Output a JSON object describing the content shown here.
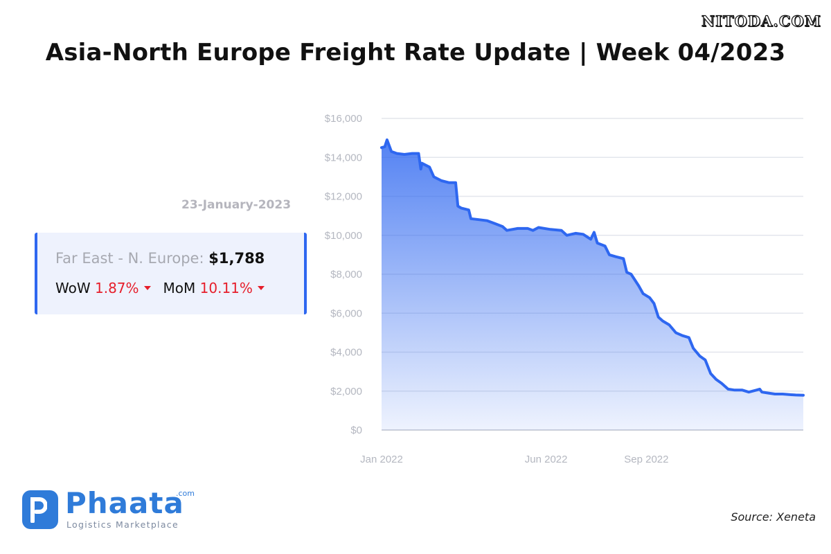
{
  "header": {
    "watermark": "NITODA.COM",
    "title": "Asia-North Europe Freight Rate Update | Week 04/2023"
  },
  "card": {
    "date": "23-January-2023",
    "route_label": "Far East - N. Europe:",
    "price": "$1,788",
    "wow_label": "WoW",
    "wow_value": "1.87%",
    "mom_label": "MoM",
    "mom_value": "10.11%"
  },
  "footer": {
    "logo_name": "Phaata",
    "logo_com": ".com",
    "logo_tagline": "Logistics Marketplace",
    "source": "Source: Xeneta"
  },
  "colors": {
    "line": "#2e67f0",
    "accent_red": "#e61e2b",
    "brand": "#2f7bd9"
  },
  "chart_data": {
    "type": "area",
    "title": "",
    "xlabel": "",
    "ylabel": "",
    "ylim": [
      0,
      16000
    ],
    "yticks": [
      0,
      2000,
      4000,
      6000,
      8000,
      10000,
      12000,
      14000,
      16000
    ],
    "ytick_labels": [
      "$0",
      "$2,000",
      "$4,000",
      "$6,000",
      "$8,000",
      "$10,000",
      "$12,000",
      "$14,000",
      "$16,000"
    ],
    "xlim": [
      "2022-01-01",
      "2023-01-23"
    ],
    "xticks": [
      {
        "date": "2022-01-01",
        "label": "Jan 2022"
      },
      {
        "date": "2022-06-01",
        "label": "Jun 2022"
      },
      {
        "date": "2022-09-01",
        "label": "Sep 2022"
      }
    ],
    "grid": true,
    "series": [
      {
        "points": [
          [
            "2022-01-01",
            14500
          ],
          [
            "2022-01-04",
            14550
          ],
          [
            "2022-01-06",
            14900
          ],
          [
            "2022-01-10",
            14300
          ],
          [
            "2022-01-15",
            14200
          ],
          [
            "2022-01-22",
            14150
          ],
          [
            "2022-01-29",
            14200
          ],
          [
            "2022-02-04",
            14200
          ],
          [
            "2022-02-06",
            13400
          ],
          [
            "2022-02-07",
            13700
          ],
          [
            "2022-02-14",
            13500
          ],
          [
            "2022-02-18",
            13000
          ],
          [
            "2022-02-25",
            12800
          ],
          [
            "2022-03-04",
            12700
          ],
          [
            "2022-03-10",
            12700
          ],
          [
            "2022-03-12",
            11500
          ],
          [
            "2022-03-15",
            11400
          ],
          [
            "2022-03-22",
            11300
          ],
          [
            "2022-03-24",
            10850
          ],
          [
            "2022-04-01",
            10800
          ],
          [
            "2022-04-08",
            10750
          ],
          [
            "2022-04-15",
            10600
          ],
          [
            "2022-04-22",
            10450
          ],
          [
            "2022-04-26",
            10250
          ],
          [
            "2022-05-06",
            10350
          ],
          [
            "2022-05-15",
            10350
          ],
          [
            "2022-05-20",
            10250
          ],
          [
            "2022-05-25",
            10400
          ],
          [
            "2022-06-05",
            10300
          ],
          [
            "2022-06-15",
            10250
          ],
          [
            "2022-06-20",
            10000
          ],
          [
            "2022-06-28",
            10100
          ],
          [
            "2022-07-05",
            10050
          ],
          [
            "2022-07-12",
            9800
          ],
          [
            "2022-07-15",
            10150
          ],
          [
            "2022-07-18",
            9600
          ],
          [
            "2022-07-25",
            9450
          ],
          [
            "2022-07-29",
            9000
          ],
          [
            "2022-08-04",
            8900
          ],
          [
            "2022-08-11",
            8800
          ],
          [
            "2022-08-14",
            8100
          ],
          [
            "2022-08-18",
            8000
          ],
          [
            "2022-08-25",
            7400
          ],
          [
            "2022-08-29",
            7000
          ],
          [
            "2022-09-04",
            6800
          ],
          [
            "2022-09-08",
            6500
          ],
          [
            "2022-09-12",
            5800
          ],
          [
            "2022-09-16",
            5600
          ],
          [
            "2022-09-22",
            5400
          ],
          [
            "2022-09-28",
            5000
          ],
          [
            "2022-10-04",
            4850
          ],
          [
            "2022-10-10",
            4750
          ],
          [
            "2022-10-14",
            4200
          ],
          [
            "2022-10-20",
            3800
          ],
          [
            "2022-10-25",
            3600
          ],
          [
            "2022-10-30",
            2900
          ],
          [
            "2022-11-04",
            2600
          ],
          [
            "2022-11-09",
            2400
          ],
          [
            "2022-11-15",
            2100
          ],
          [
            "2022-11-21",
            2050
          ],
          [
            "2022-11-28",
            2050
          ],
          [
            "2022-12-04",
            1950
          ],
          [
            "2022-12-11",
            2050
          ],
          [
            "2022-12-14",
            2100
          ],
          [
            "2022-12-16",
            1950
          ],
          [
            "2022-12-22",
            1900
          ],
          [
            "2022-12-28",
            1850
          ],
          [
            "2023-01-04",
            1850
          ],
          [
            "2023-01-10",
            1820
          ],
          [
            "2023-01-16",
            1800
          ],
          [
            "2023-01-23",
            1788
          ]
        ]
      }
    ]
  }
}
